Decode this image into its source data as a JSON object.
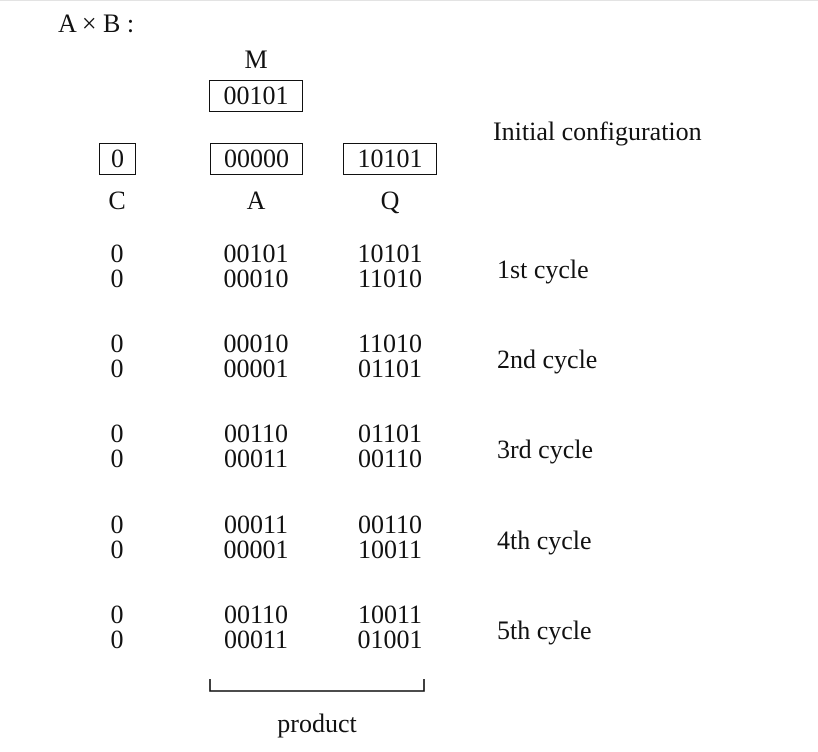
{
  "title": "A × B :",
  "m_label": "M",
  "m_value": "00101",
  "initial": {
    "c": "0",
    "a": "00000",
    "q": "10101",
    "label": "Initial configuration"
  },
  "headers": {
    "c": "C",
    "a": "A",
    "q": "Q"
  },
  "cycles": [
    {
      "label": "1st cycle",
      "rows": [
        {
          "c": "0",
          "a": "00101",
          "q": "10101"
        },
        {
          "c": "0",
          "a": "00010",
          "q": "11010"
        }
      ]
    },
    {
      "label": "2nd cycle",
      "rows": [
        {
          "c": "0",
          "a": "00010",
          "q": "11010"
        },
        {
          "c": "0",
          "a": "00001",
          "q": "01101"
        }
      ]
    },
    {
      "label": "3rd cycle",
      "rows": [
        {
          "c": "0",
          "a": "00110",
          "q": "01101"
        },
        {
          "c": "0",
          "a": "00011",
          "q": "00110"
        }
      ]
    },
    {
      "label": "4th cycle",
      "rows": [
        {
          "c": "0",
          "a": "00011",
          "q": "00110"
        },
        {
          "c": "0",
          "a": "00001",
          "q": "10011"
        }
      ]
    },
    {
      "label": "5th cycle",
      "rows": [
        {
          "c": "0",
          "a": "00110",
          "q": "10011"
        },
        {
          "c": "0",
          "a": "00011",
          "q": "01001"
        }
      ]
    }
  ],
  "product_label": "product"
}
